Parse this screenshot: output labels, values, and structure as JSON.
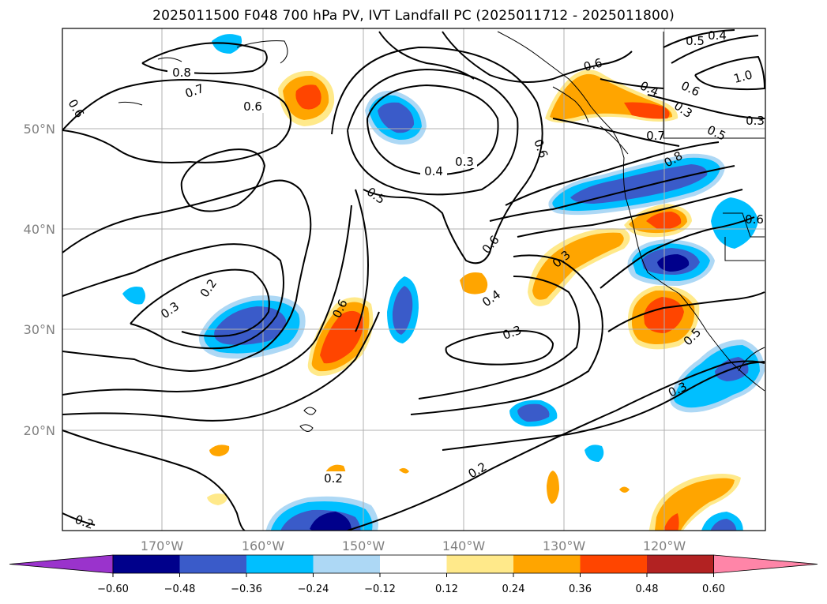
{
  "title": "2025011500 F048 700 hPa PV, IVT Landfall PC (2025011712 - 2025011800)",
  "map": {
    "lon_labels": [
      "170°W",
      "160°W",
      "150°W",
      "140°W",
      "130°W",
      "120°W"
    ],
    "lat_labels": [
      "50°N",
      "40°N",
      "30°N",
      "20°N"
    ]
  },
  "contour_labels": [
    "0.8",
    "0.7",
    "0.6",
    "0.6",
    "0.3",
    "0.4",
    "0.5",
    "0.6",
    "0.6",
    "0.4",
    "0.3",
    "0.2",
    "0.3",
    "0.6",
    "0.3",
    "0.6",
    "0.4",
    "0.6",
    "0.5",
    "0.3",
    "0.7",
    "0.8",
    "0.5",
    "0.3",
    "0.3",
    "0.2",
    "0.2",
    "1.0",
    "0.5",
    "0.4",
    "0.6"
  ],
  "colorbar": {
    "ticks": [
      "−0.60",
      "−0.48",
      "−0.36",
      "−0.24",
      "−0.12",
      "0.12",
      "0.24",
      "0.36",
      "0.48",
      "0.60"
    ],
    "colors": [
      "#9a33cc",
      "#00008b",
      "#3a5bc9",
      "#00bfff",
      "#add8f5",
      "#ffffff",
      "#ffe98a",
      "#ffa500",
      "#ff4500",
      "#b22222",
      "#ff85a8"
    ]
  }
}
